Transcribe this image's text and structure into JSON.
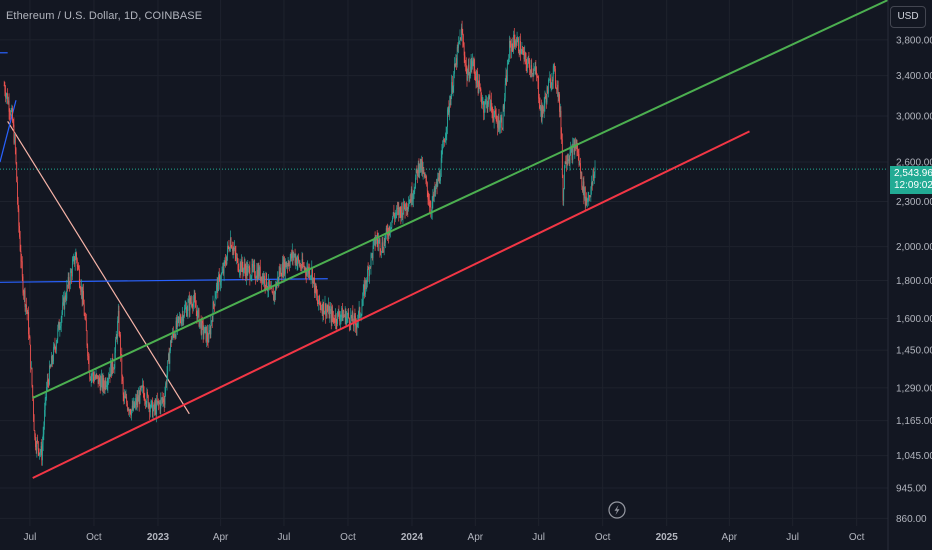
{
  "header": {
    "title": "Ethereum / U.S. Dollar, 1D, COINBASE",
    "currency_button": "USD"
  },
  "last_price": {
    "value": "2,543.96",
    "countdown": "12:09:02",
    "color": "#22ab94"
  },
  "icons": {
    "alert": "lightning-bolt-icon"
  },
  "colors": {
    "background": "#131722",
    "up": "#26a69a",
    "down": "#ef5350",
    "green_trendline": "#4caf50",
    "red_trendline": "#f23645",
    "blue_lines": "#2962ff",
    "diagonal_line": "#f7b4a8"
  },
  "chart_data": {
    "type": "candlestick",
    "title": "Ethereum / U.S. Dollar, 1D, COINBASE",
    "price_axis": {
      "ticks": [
        "3,800.00",
        "3,400.00",
        "3,000.00",
        "2,600.00",
        "2,300.00",
        "2,000.00",
        "1,800.00",
        "1,600.00",
        "1,450.00",
        "1,290.00",
        "1,165.00",
        "1,045.00",
        "945.00",
        "860.00"
      ],
      "tick_values": [
        3800,
        3400,
        3000,
        2600,
        2300,
        2000,
        1800,
        1600,
        1450,
        1290,
        1165,
        1045,
        945,
        860
      ],
      "scale": "log",
      "range": [
        840,
        4300
      ]
    },
    "time_axis": {
      "ticks": [
        "Jul",
        "Oct",
        "2023",
        "Apr",
        "Jul",
        "Oct",
        "2024",
        "Apr",
        "Jul",
        "Oct",
        "2025",
        "Apr",
        "Jul",
        "Oct"
      ],
      "bold": [
        "2023",
        "2024",
        "2025"
      ],
      "range": [
        "2022-05-19",
        "2025-11-15"
      ]
    },
    "price_series": [
      [
        "2022-05-25",
        3300
      ],
      [
        "2022-06-05",
        3000
      ],
      [
        "2022-06-10",
        2700
      ],
      [
        "2022-06-14",
        2200
      ],
      [
        "2022-06-20",
        1800
      ],
      [
        "2022-06-28",
        1600
      ],
      [
        "2022-07-08",
        1100
      ],
      [
        "2022-07-18",
        1050
      ],
      [
        "2022-07-25",
        1290
      ],
      [
        "2022-08-05",
        1450
      ],
      [
        "2022-08-20",
        1700
      ],
      [
        "2022-09-05",
        1950
      ],
      [
        "2022-09-15",
        1700
      ],
      [
        "2022-09-25",
        1350
      ],
      [
        "2022-10-15",
        1300
      ],
      [
        "2022-10-30",
        1400
      ],
      [
        "2022-11-05",
        1600
      ],
      [
        "2022-11-12",
        1250
      ],
      [
        "2022-11-25",
        1200
      ],
      [
        "2022-12-10",
        1280
      ],
      [
        "2022-12-25",
        1200
      ],
      [
        "2023-01-10",
        1250
      ],
      [
        "2023-01-20",
        1500
      ],
      [
        "2023-02-05",
        1620
      ],
      [
        "2023-02-20",
        1700
      ],
      [
        "2023-03-05",
        1550
      ],
      [
        "2023-03-15",
        1500
      ],
      [
        "2023-03-25",
        1750
      ],
      [
        "2023-04-05",
        1850
      ],
      [
        "2023-04-15",
        2050
      ],
      [
        "2023-04-25",
        1900
      ],
      [
        "2023-05-10",
        1850
      ],
      [
        "2023-05-25",
        1850
      ],
      [
        "2023-06-05",
        1800
      ],
      [
        "2023-06-15",
        1700
      ],
      [
        "2023-06-25",
        1850
      ],
      [
        "2023-07-05",
        1900
      ],
      [
        "2023-07-15",
        1950
      ],
      [
        "2023-07-25",
        1880
      ],
      [
        "2023-08-10",
        1850
      ],
      [
        "2023-08-18",
        1680
      ],
      [
        "2023-08-30",
        1650
      ],
      [
        "2023-09-10",
        1600
      ],
      [
        "2023-09-20",
        1620
      ],
      [
        "2023-10-05",
        1600
      ],
      [
        "2023-10-12",
        1570
      ],
      [
        "2023-10-20",
        1650
      ],
      [
        "2023-10-27",
        1800
      ],
      [
        "2023-11-10",
        2050
      ],
      [
        "2023-11-20",
        2000
      ],
      [
        "2023-12-05",
        2200
      ],
      [
        "2023-12-20",
        2250
      ],
      [
        "2024-01-01",
        2350
      ],
      [
        "2024-01-12",
        2600
      ],
      [
        "2024-01-20",
        2450
      ],
      [
        "2024-01-28",
        2250
      ],
      [
        "2024-02-10",
        2500
      ],
      [
        "2024-02-20",
        2950
      ],
      [
        "2024-03-01",
        3400
      ],
      [
        "2024-03-12",
        3900
      ],
      [
        "2024-03-20",
        3400
      ],
      [
        "2024-03-28",
        3550
      ],
      [
        "2024-04-05",
        3300
      ],
      [
        "2024-04-13",
        3100
      ],
      [
        "2024-04-20",
        3150
      ],
      [
        "2024-05-01",
        2950
      ],
      [
        "2024-05-10",
        2950
      ],
      [
        "2024-05-20",
        3700
      ],
      [
        "2024-05-28",
        3800
      ],
      [
        "2024-06-05",
        3700
      ],
      [
        "2024-06-12",
        3550
      ],
      [
        "2024-06-20",
        3500
      ],
      [
        "2024-06-28",
        3400
      ],
      [
        "2024-07-05",
        3000
      ],
      [
        "2024-07-12",
        3200
      ],
      [
        "2024-07-22",
        3450
      ],
      [
        "2024-07-29",
        3250
      ],
      [
        "2024-08-03",
        2800
      ],
      [
        "2024-08-05",
        2300
      ],
      [
        "2024-08-08",
        2650
      ],
      [
        "2024-08-15",
        2650
      ],
      [
        "2024-08-24",
        2750
      ],
      [
        "2024-09-01",
        2450
      ],
      [
        "2024-09-07",
        2300
      ],
      [
        "2024-09-15",
        2400
      ],
      [
        "2024-09-20",
        2543.96
      ]
    ],
    "drawings": [
      {
        "type": "trendline",
        "name": "green-trendline",
        "color": "#4caf50",
        "points": [
          [
            "2022-07-05",
            1250
          ],
          [
            "2025-11-15",
            4300
          ]
        ]
      },
      {
        "type": "trendline",
        "name": "red-trendline",
        "color": "#f23645",
        "points": [
          [
            "2022-07-05",
            975
          ],
          [
            "2025-04-30",
            2860
          ]
        ]
      },
      {
        "type": "trendline",
        "name": "diagonal-line",
        "color": "#f7b4a8",
        "points": [
          [
            "2022-05-30",
            2950
          ],
          [
            "2023-02-15",
            1190
          ]
        ]
      },
      {
        "type": "horizontal",
        "name": "blue-horizontal-line",
        "color": "#2962ff",
        "points": [
          [
            "2022-05-19",
            1790
          ],
          [
            "2023-09-02",
            1810
          ]
        ]
      },
      {
        "type": "horizontal",
        "name": "blue-top-line",
        "color": "#2962ff",
        "points": [
          [
            "2022-05-19",
            3650
          ],
          [
            "2022-05-30",
            3650
          ]
        ]
      },
      {
        "type": "trendline",
        "name": "blue-diagonal-line",
        "color": "#2962ff",
        "points": [
          [
            "2022-05-19",
            2600
          ],
          [
            "2022-06-11",
            3150
          ]
        ]
      }
    ],
    "last_price": 2543.96
  }
}
